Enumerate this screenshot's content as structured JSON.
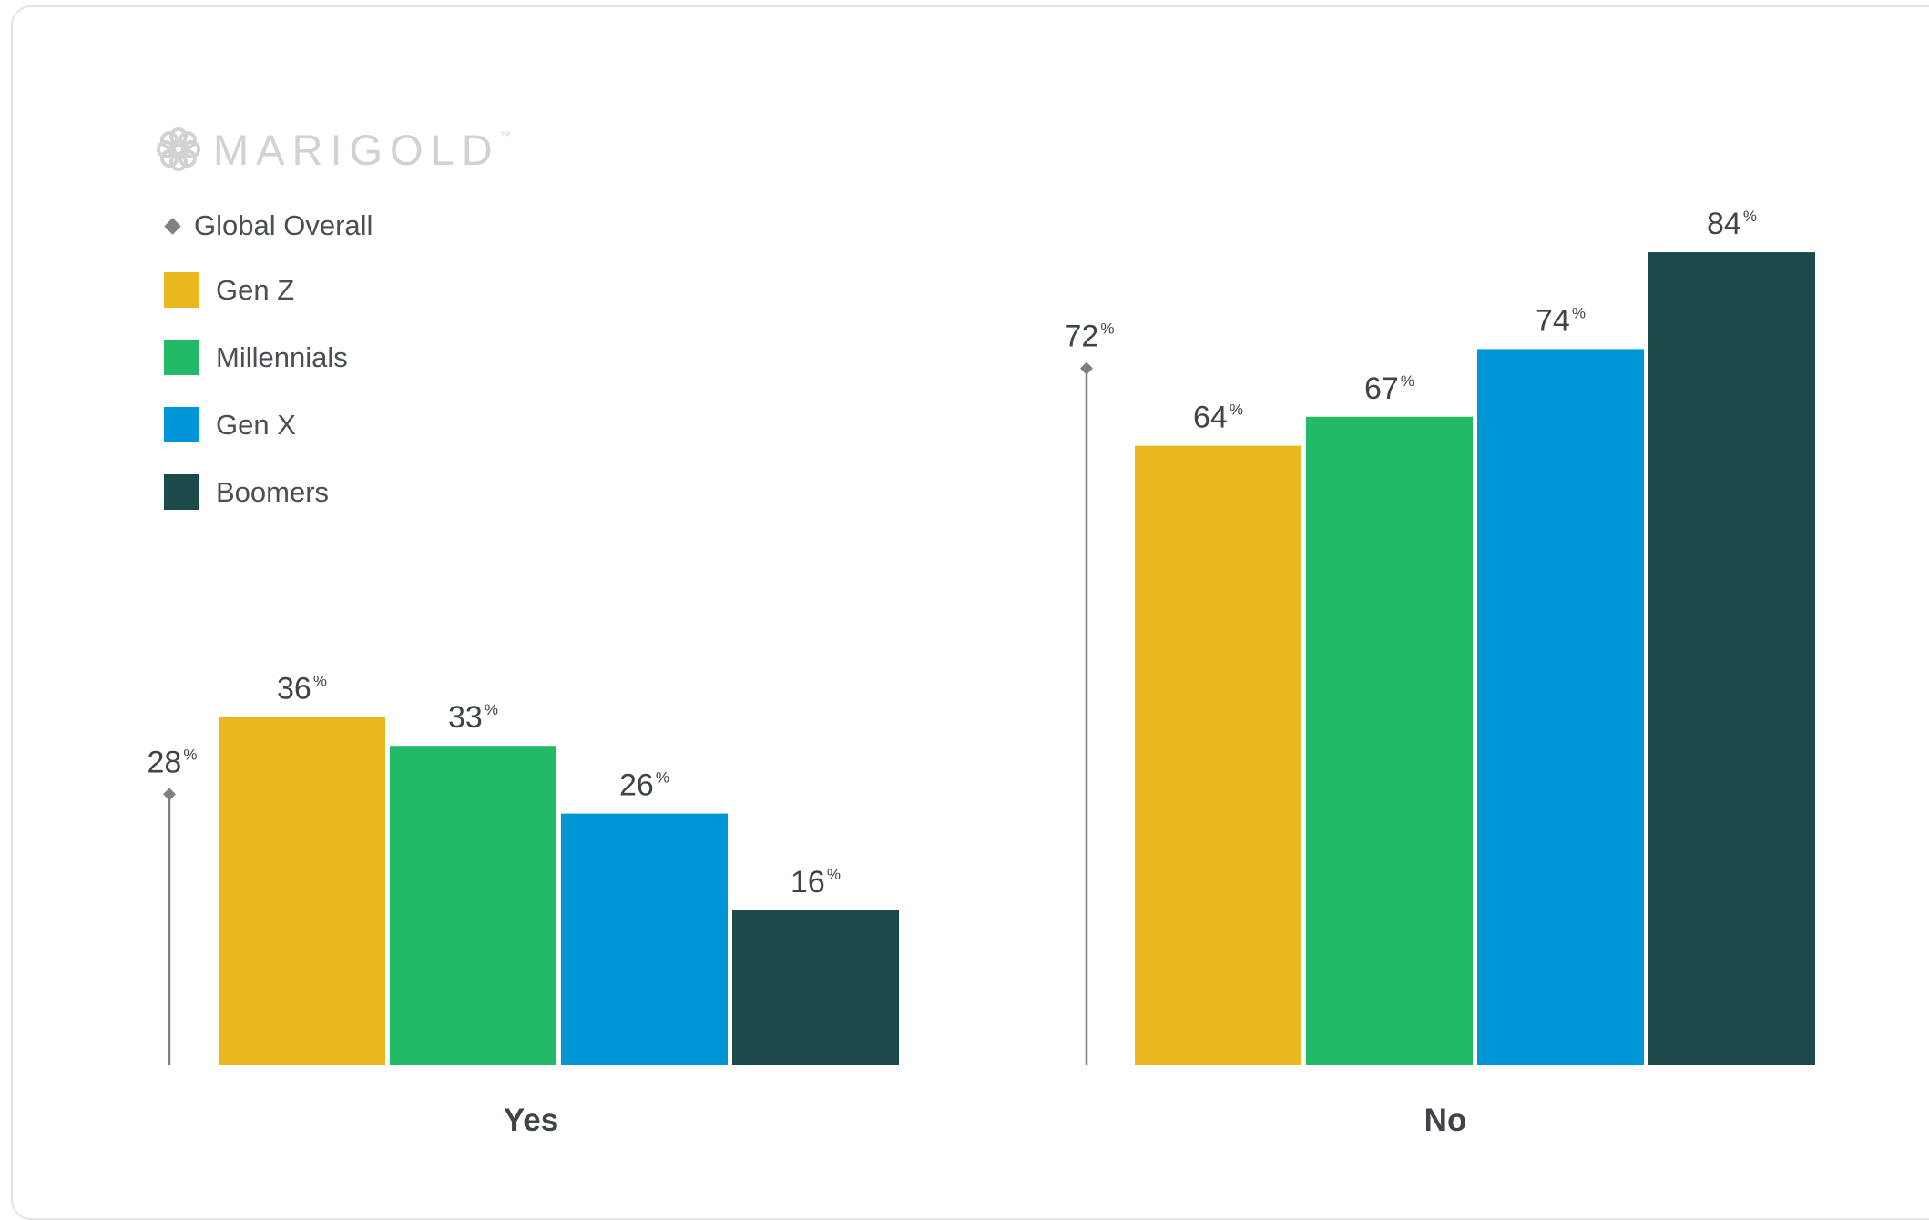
{
  "brand": {
    "name": "MARIGOLD",
    "mark": "™"
  },
  "colors": {
    "gen_z": "#E8B81E",
    "millennials": "#22BA66",
    "gen_x": "#0095D5",
    "boomers": "#1C4A4A",
    "overall": "#808080",
    "text": "#3E444A"
  },
  "legend": {
    "overall_label": "Global Overall",
    "items": [
      {
        "label": "Gen Z",
        "color": "#E8B81E"
      },
      {
        "label": "Millennials",
        "color": "#22BA66"
      },
      {
        "label": "Gen X",
        "color": "#0095D5"
      },
      {
        "label": "Boomers",
        "color": "#1C4A4A"
      }
    ]
  },
  "chart_data": {
    "type": "bar",
    "categories": [
      "Yes",
      "No"
    ],
    "ylim": [
      0,
      100
    ],
    "value_suffix": "%",
    "overall": {
      "label": "Global Overall",
      "values": [
        28,
        72
      ]
    },
    "series": [
      {
        "name": "Gen Z",
        "color": "#E8B81E",
        "values": [
          36,
          64
        ]
      },
      {
        "name": "Millennials",
        "color": "#22BA66",
        "values": [
          33,
          67
        ]
      },
      {
        "name": "Gen X",
        "color": "#0095D5",
        "values": [
          26,
          74
        ]
      },
      {
        "name": "Boomers",
        "color": "#1C4A4A",
        "values": [
          16,
          84
        ]
      }
    ]
  }
}
